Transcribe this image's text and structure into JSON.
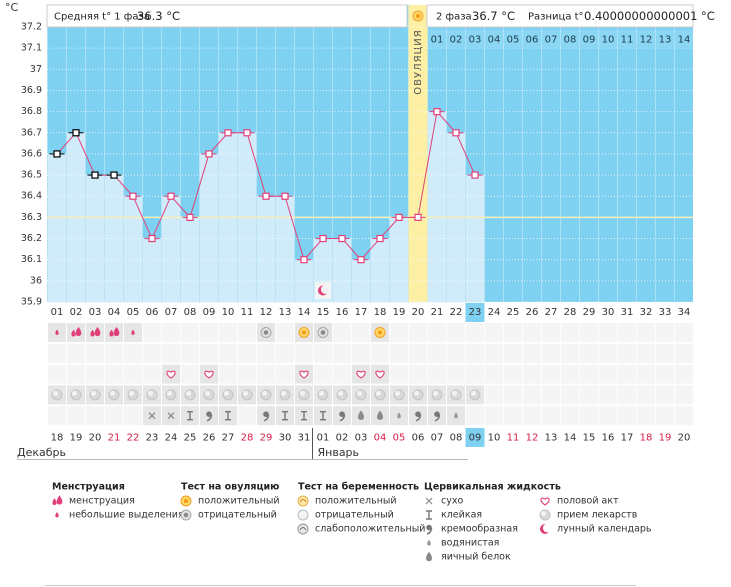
{
  "header": {
    "phase1_label": "Средняя t° 1 фаза",
    "phase1_value": "36.3 °C",
    "phase2_label": "2 фаза",
    "phase2_value": "36.7 °C",
    "diff_label": "Разница t°",
    "diff_value": "0.40000000000001 °C"
  },
  "chart_data": {
    "type": "line",
    "ylabel": "°С",
    "categories": [
      "01",
      "02",
      "03",
      "04",
      "05",
      "06",
      "07",
      "08",
      "09",
      "10",
      "11",
      "12",
      "13",
      "14",
      "15",
      "16",
      "17",
      "18",
      "19",
      "20",
      "21",
      "22",
      "23",
      "24",
      "25",
      "26",
      "27",
      "28",
      "29",
      "30",
      "31",
      "32",
      "33",
      "34"
    ],
    "values": [
      36.6,
      36.7,
      36.5,
      36.5,
      36.4,
      36.2,
      36.4,
      36.3,
      36.6,
      36.7,
      36.7,
      36.4,
      36.4,
      36.1,
      36.2,
      36.2,
      36.1,
      36.2,
      36.3,
      36.3,
      36.8,
      36.7,
      36.5,
      null,
      null,
      null,
      null,
      null,
      null,
      null,
      null,
      null,
      null,
      null
    ],
    "color": "#e0407a",
    "marker_colors": [
      "#000000",
      "#000000",
      "#000000",
      "#000000",
      "#e0407a",
      "#e0407a",
      "#e0407a",
      "#e0407a",
      "#e0407a",
      "#e0407a",
      "#e0407a",
      "#e0407a",
      "#e0407a",
      "#e0407a",
      "#e0407a",
      "#e0407a",
      "#e0407a",
      "#e0407a",
      "#e0407a",
      "#e0407a",
      "#e0407a",
      "#e0407a",
      "#e0407a",
      null,
      null,
      null,
      null,
      null,
      null,
      null,
      null,
      null,
      null,
      null
    ],
    "ylim": [
      35.9,
      37.2
    ],
    "yticks": [
      35.9,
      36,
      36.1,
      36.2,
      36.3,
      36.4,
      36.5,
      36.6,
      36.7,
      36.8,
      36.9,
      37,
      37.1,
      37.2
    ],
    "grid": true,
    "coverline": 36.3,
    "ovulation_day": "20",
    "ovulation_label": "ОВУЛЯЦИЯ",
    "today": "23",
    "phase2_days": [
      "01",
      "02",
      "03",
      "04",
      "05",
      "06",
      "07",
      "08",
      "09",
      "10",
      "11",
      "12",
      "13",
      "14"
    ],
    "lunar_days": [
      "15"
    ]
  },
  "symbol_rows": [
    [
      "небольшие выделения",
      "менструация",
      "менструация",
      "менструация",
      "небольшие выделения",
      null,
      null,
      null,
      null,
      null,
      null,
      "отрицательный",
      null,
      "положительный",
      "отрицательный",
      null,
      null,
      "положительный",
      null,
      null,
      null,
      null,
      null,
      null,
      null,
      null,
      null,
      null,
      null,
      null,
      null,
      null,
      null,
      null
    ],
    [
      null,
      null,
      null,
      null,
      null,
      null,
      null,
      null,
      null,
      null,
      null,
      null,
      null,
      null,
      null,
      null,
      null,
      null,
      null,
      null,
      null,
      null,
      null,
      null,
      null,
      null,
      null,
      null,
      null,
      null,
      null,
      null,
      null,
      null
    ],
    [
      null,
      null,
      null,
      null,
      null,
      null,
      "половой акт",
      null,
      "половой акт",
      null,
      null,
      null,
      null,
      "половой акт",
      null,
      null,
      "половой акт",
      "половой акт",
      null,
      null,
      null,
      null,
      null,
      null,
      null,
      null,
      null,
      null,
      null,
      null,
      null,
      null,
      null,
      null
    ],
    [
      "прием лекарств",
      "прием лекарств",
      "прием лекарств",
      "прием лекарств",
      "прием лекарств",
      "прием лекарств",
      "прием лекарств",
      "прием лекарств",
      "прием лекарств",
      "прием лекарств",
      "прием лекарств",
      "прием лекарств",
      "прием лекарств",
      "прием лекарств",
      "прием лекарств",
      "прием лекарств",
      "прием лекарств",
      "прием лекарств",
      "прием лекарств",
      "прием лекарств",
      "прием лекарств",
      "прием лекарств",
      "прием лекарств",
      null,
      null,
      null,
      null,
      null,
      null,
      null,
      null,
      null,
      null,
      null
    ],
    [
      null,
      null,
      null,
      null,
      null,
      "сухо",
      "сухо",
      "клейкая",
      "кремообразная",
      "клейкая",
      null,
      "кремообразная",
      "клейкая",
      "клейкая",
      "клейкая",
      "кремообразная",
      "яичный белок",
      "яичный белок",
      "водянистая",
      "кремообразная",
      "кремообразная",
      "водянистая",
      null,
      null,
      null,
      null,
      null,
      null,
      null,
      null,
      null,
      null,
      null,
      null
    ]
  ],
  "months": [
    {
      "name": "Декабрь",
      "dates": [
        "18",
        "19",
        "20",
        "21",
        "22",
        "23",
        "24",
        "25",
        "26",
        "27",
        "28",
        "29",
        "30",
        "31"
      ],
      "weekend": [
        false,
        false,
        false,
        true,
        true,
        false,
        false,
        false,
        false,
        false,
        true,
        true,
        false,
        false
      ]
    },
    {
      "name": "Январь",
      "dates": [
        "01",
        "02",
        "03",
        "04",
        "05",
        "06",
        "07",
        "08",
        "09",
        "10",
        "11",
        "12",
        "13",
        "14",
        "15",
        "16",
        "17",
        "18",
        "19",
        "20"
      ],
      "weekend": [
        false,
        false,
        false,
        true,
        true,
        false,
        false,
        false,
        false,
        false,
        true,
        true,
        false,
        false,
        false,
        false,
        false,
        true,
        true,
        false
      ]
    }
  ],
  "today_date": "09",
  "legend": [
    {
      "title": "Менструация",
      "items": [
        "менструация",
        "небольшие выделения"
      ]
    },
    {
      "title": "Тест на овуляцию",
      "items": [
        "положительный",
        "отрицательный"
      ]
    },
    {
      "title": "Тест на беременность",
      "items": [
        "положительный",
        "отрицательный",
        "слабоположительный"
      ]
    },
    {
      "title": "Цервикальная жидкость",
      "items": [
        "сухо",
        "клейкая",
        "кремообразная",
        "водянистая",
        "яичный белок"
      ]
    },
    {
      "items": [
        "половой акт",
        "прием лекарств",
        "лунный календарь"
      ]
    }
  ]
}
